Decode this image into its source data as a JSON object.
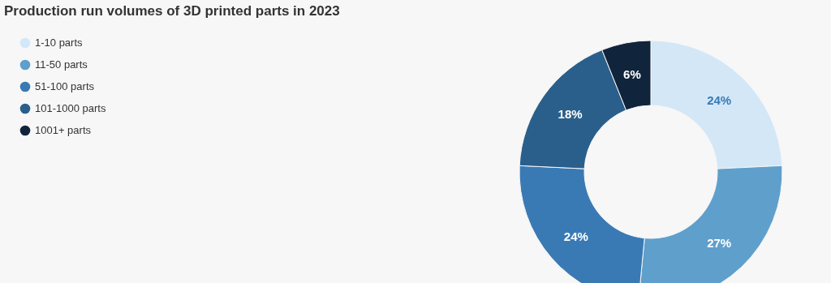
{
  "chart_data": {
    "type": "donut",
    "title": "Production run volumes of 3D printed parts in 2023",
    "categories": [
      "1-10 parts",
      "11-50 parts",
      "51-100 parts",
      "101-1000 parts",
      "1001+ parts"
    ],
    "values": [
      24,
      27,
      24,
      18,
      6
    ],
    "colors": [
      "#d3e7f7",
      "#5f9fcc",
      "#3a7ab4",
      "#2a5f8b",
      "#10253c"
    ],
    "value_labels": [
      "24%",
      "27%",
      "24%",
      "18%",
      "6%"
    ],
    "legend": "top left"
  }
}
